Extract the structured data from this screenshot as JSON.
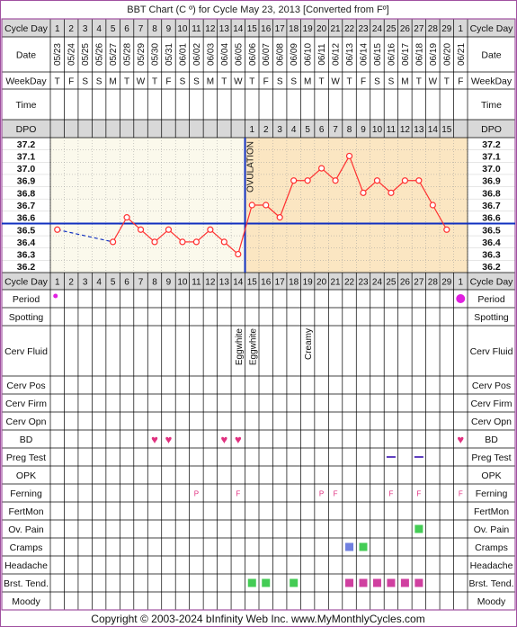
{
  "title": "BBT Chart (C º) for Cycle May 23, 2013  [Converted from Fº]",
  "footer": "Copyright © 2003-2024 bInfinity Web Inc.    www.MyMonthlyCycles.com",
  "colors": {
    "frame": "#a050a0",
    "grid": "#000000",
    "label_bg": "#ffffff",
    "header_bg": "#d8d8d8",
    "follicular_bg": "#fbf9ec",
    "luteal_bg": "#fbe6c2",
    "temp_line": "#ff3030",
    "coverline": "#1030c0",
    "ovulation_line": "#1030c0",
    "heart": "#e0307f",
    "period_dot": "#e020e0",
    "ferning_text": "#e03080",
    "preg_test": "#6040c0",
    "marker_green": "#44cc55",
    "marker_blue": "#7080e0",
    "marker_magenta": "#d040a0"
  },
  "labels": {
    "cycle_day": "Cycle Day",
    "date": "Date",
    "weekday": "WeekDay",
    "time": "Time",
    "dpo": "DPO",
    "period": "Period",
    "spotting": "Spotting",
    "cerv_fluid": "Cerv Fluid",
    "cerv_pos": "Cerv Pos",
    "cerv_firm": "Cerv Firm",
    "cerv_opn": "Cerv Opn",
    "bd": "BD",
    "preg_test": "Preg Test",
    "opk": "OPK",
    "ferning": "Ferning",
    "fertmon": "FertMon",
    "ov_pain": "Ov. Pain",
    "cramps": "Cramps",
    "headache": "Headache",
    "brst_tend": "Brst. Tend.",
    "moody": "Moody",
    "ovulation": "OVULATION"
  },
  "chart_data": {
    "type": "line",
    "cycle_days": [
      "1",
      "2",
      "3",
      "4",
      "5",
      "6",
      "7",
      "8",
      "9",
      "10",
      "11",
      "12",
      "13",
      "14",
      "15",
      "16",
      "17",
      "18",
      "19",
      "20",
      "21",
      "22",
      "23",
      "24",
      "25",
      "26",
      "27",
      "28",
      "29",
      "1"
    ],
    "dates": [
      "05/23",
      "05/24",
      "05/25",
      "05/26",
      "05/27",
      "05/28",
      "05/29",
      "05/30",
      "05/31",
      "06/01",
      "06/02",
      "06/03",
      "06/04",
      "06/05",
      "06/06",
      "06/07",
      "06/08",
      "06/09",
      "06/10",
      "06/11",
      "06/12",
      "06/13",
      "06/14",
      "06/15",
      "06/16",
      "06/17",
      "06/18",
      "06/19",
      "06/20",
      "06/21"
    ],
    "weekdays": [
      "T",
      "F",
      "S",
      "S",
      "M",
      "T",
      "W",
      "T",
      "F",
      "S",
      "S",
      "M",
      "T",
      "W",
      "T",
      "F",
      "S",
      "S",
      "M",
      "T",
      "W",
      "T",
      "F",
      "S",
      "S",
      "M",
      "T",
      "W",
      "T",
      "F"
    ],
    "dpo": [
      "",
      "",
      "",
      "",
      "",
      "",
      "",
      "",
      "",
      "",
      "",
      "",
      "",
      "",
      "1",
      "2",
      "3",
      "4",
      "5",
      "6",
      "7",
      "8",
      "9",
      "10",
      "11",
      "12",
      "13",
      "14",
      "15",
      ""
    ],
    "temperature_axis": [
      "37.2",
      "37.1",
      "37.0",
      "36.9",
      "36.8",
      "36.7",
      "36.6",
      "36.5",
      "36.4",
      "36.3",
      "36.2"
    ],
    "ylim": [
      36.2,
      37.2
    ],
    "temperatures": [
      36.5,
      null,
      null,
      null,
      36.4,
      36.6,
      36.5,
      36.4,
      36.5,
      36.4,
      36.4,
      36.5,
      36.4,
      36.3,
      36.7,
      36.7,
      36.6,
      36.9,
      36.9,
      37.0,
      36.9,
      37.1,
      36.8,
      36.9,
      36.8,
      36.9,
      36.9,
      36.7,
      36.5,
      null
    ],
    "coverline": 36.55,
    "ovulation_after_day_index": 13,
    "period": [
      0,
      29
    ],
    "cerv_fluid": [
      {
        "day": 13,
        "text": "Eggwhite"
      },
      {
        "day": 14,
        "text": "Eggwhite"
      },
      {
        "day": 18,
        "text": "Creamy"
      }
    ],
    "bd": [
      7,
      8,
      12,
      13,
      29
    ],
    "preg_test": [
      24,
      26
    ],
    "ferning": [
      {
        "day": 10,
        "text": "P"
      },
      {
        "day": 13,
        "text": "F"
      },
      {
        "day": 19,
        "text": "P"
      },
      {
        "day": 20,
        "text": "F"
      },
      {
        "day": 24,
        "text": "F"
      },
      {
        "day": 26,
        "text": "F"
      },
      {
        "day": 29,
        "text": "F"
      }
    ],
    "ov_pain": [
      {
        "day": 26,
        "color": "green"
      }
    ],
    "cramps": [
      {
        "day": 21,
        "color": "blue"
      },
      {
        "day": 22,
        "color": "green"
      }
    ],
    "brst_tend": [
      {
        "day": 14,
        "color": "green"
      },
      {
        "day": 15,
        "color": "green"
      },
      {
        "day": 17,
        "color": "green"
      },
      {
        "day": 21,
        "color": "magenta"
      },
      {
        "day": 22,
        "color": "magenta"
      },
      {
        "day": 23,
        "color": "magenta"
      },
      {
        "day": 24,
        "color": "magenta"
      },
      {
        "day": 25,
        "color": "magenta"
      },
      {
        "day": 26,
        "color": "magenta"
      }
    ]
  }
}
